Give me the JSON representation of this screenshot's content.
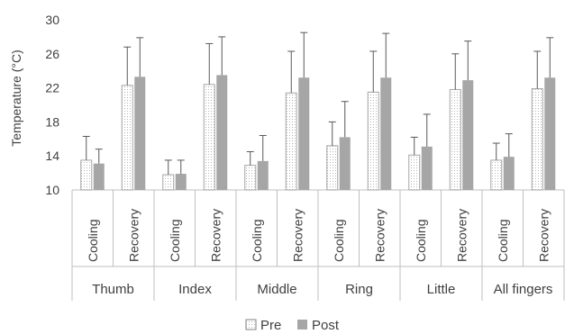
{
  "chart_data": {
    "type": "bar",
    "ylabel": "Temperature (°C)",
    "ylim": [
      10,
      30
    ],
    "yticks": [
      10,
      14,
      18,
      22,
      26,
      30
    ],
    "grid": false,
    "legend_position": "bottom",
    "groups": [
      "Thumb",
      "Index",
      "Middle",
      "Ring",
      "Little",
      "All fingers"
    ],
    "subcategories": [
      "Cooling",
      "Recovery"
    ],
    "series": [
      {
        "name": "Pre",
        "color": "#ffffff",
        "pattern": "dotted",
        "values": [
          13.5,
          22.3,
          11.8,
          22.4,
          12.9,
          21.4,
          15.2,
          21.5,
          14.1,
          21.8,
          13.5,
          21.9
        ],
        "errors": [
          2.8,
          4.5,
          1.7,
          4.8,
          1.6,
          4.9,
          2.8,
          4.8,
          2.1,
          4.2,
          2.0,
          4.4
        ]
      },
      {
        "name": "Post",
        "color": "#a6a6a6",
        "pattern": "solid",
        "values": [
          13.1,
          23.3,
          11.9,
          23.5,
          13.4,
          23.2,
          16.2,
          23.2,
          15.1,
          22.9,
          13.9,
          23.2
        ],
        "errors": [
          1.7,
          4.6,
          1.6,
          4.5,
          3.0,
          5.3,
          4.2,
          5.2,
          3.8,
          4.6,
          2.7,
          4.7
        ]
      }
    ]
  }
}
